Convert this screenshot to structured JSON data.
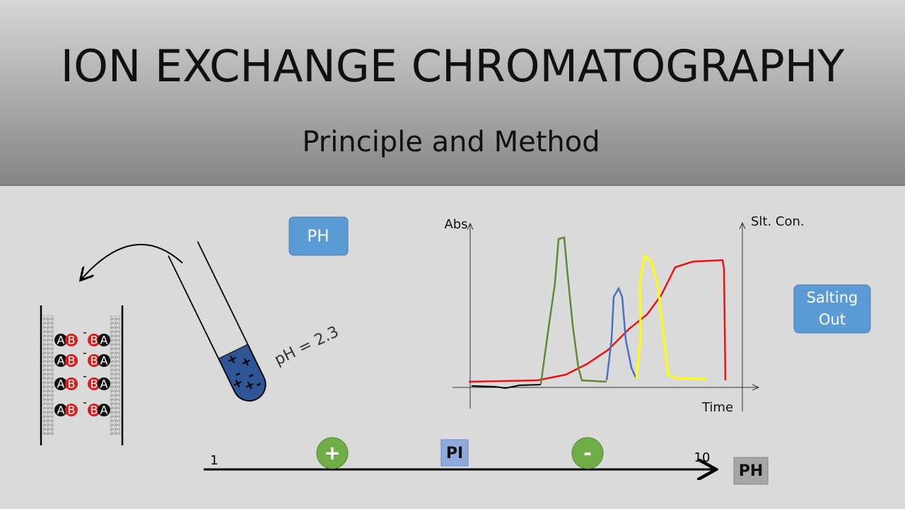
{
  "header": {
    "title": "ION EXCHANGE CHROMATOGRAPHY",
    "subtitle": "Principle and Method"
  },
  "column": {
    "rows": [
      [
        "A",
        "B",
        "-",
        "B",
        "A"
      ],
      [
        "A",
        "B",
        "-",
        "B",
        "A"
      ],
      [
        "A",
        "B",
        "-",
        "B",
        "A"
      ],
      [
        "A",
        "B",
        "-",
        "B",
        "A"
      ]
    ]
  },
  "tube": {
    "label": "pH = 2.3",
    "charges": [
      "+",
      "+",
      "-",
      "+",
      "-",
      "+",
      "-"
    ]
  },
  "buttons": {
    "ph": "PH",
    "salting_out": [
      "Salting",
      "Out"
    ]
  },
  "chromatogram": {
    "y_label": "Abs",
    "y2_label": "Slt. Con.",
    "x_label": "Time"
  },
  "scale": {
    "start": "1",
    "end": "10",
    "positive": "+",
    "pi": "PI",
    "negative": "-",
    "axis_label": "PH"
  }
}
